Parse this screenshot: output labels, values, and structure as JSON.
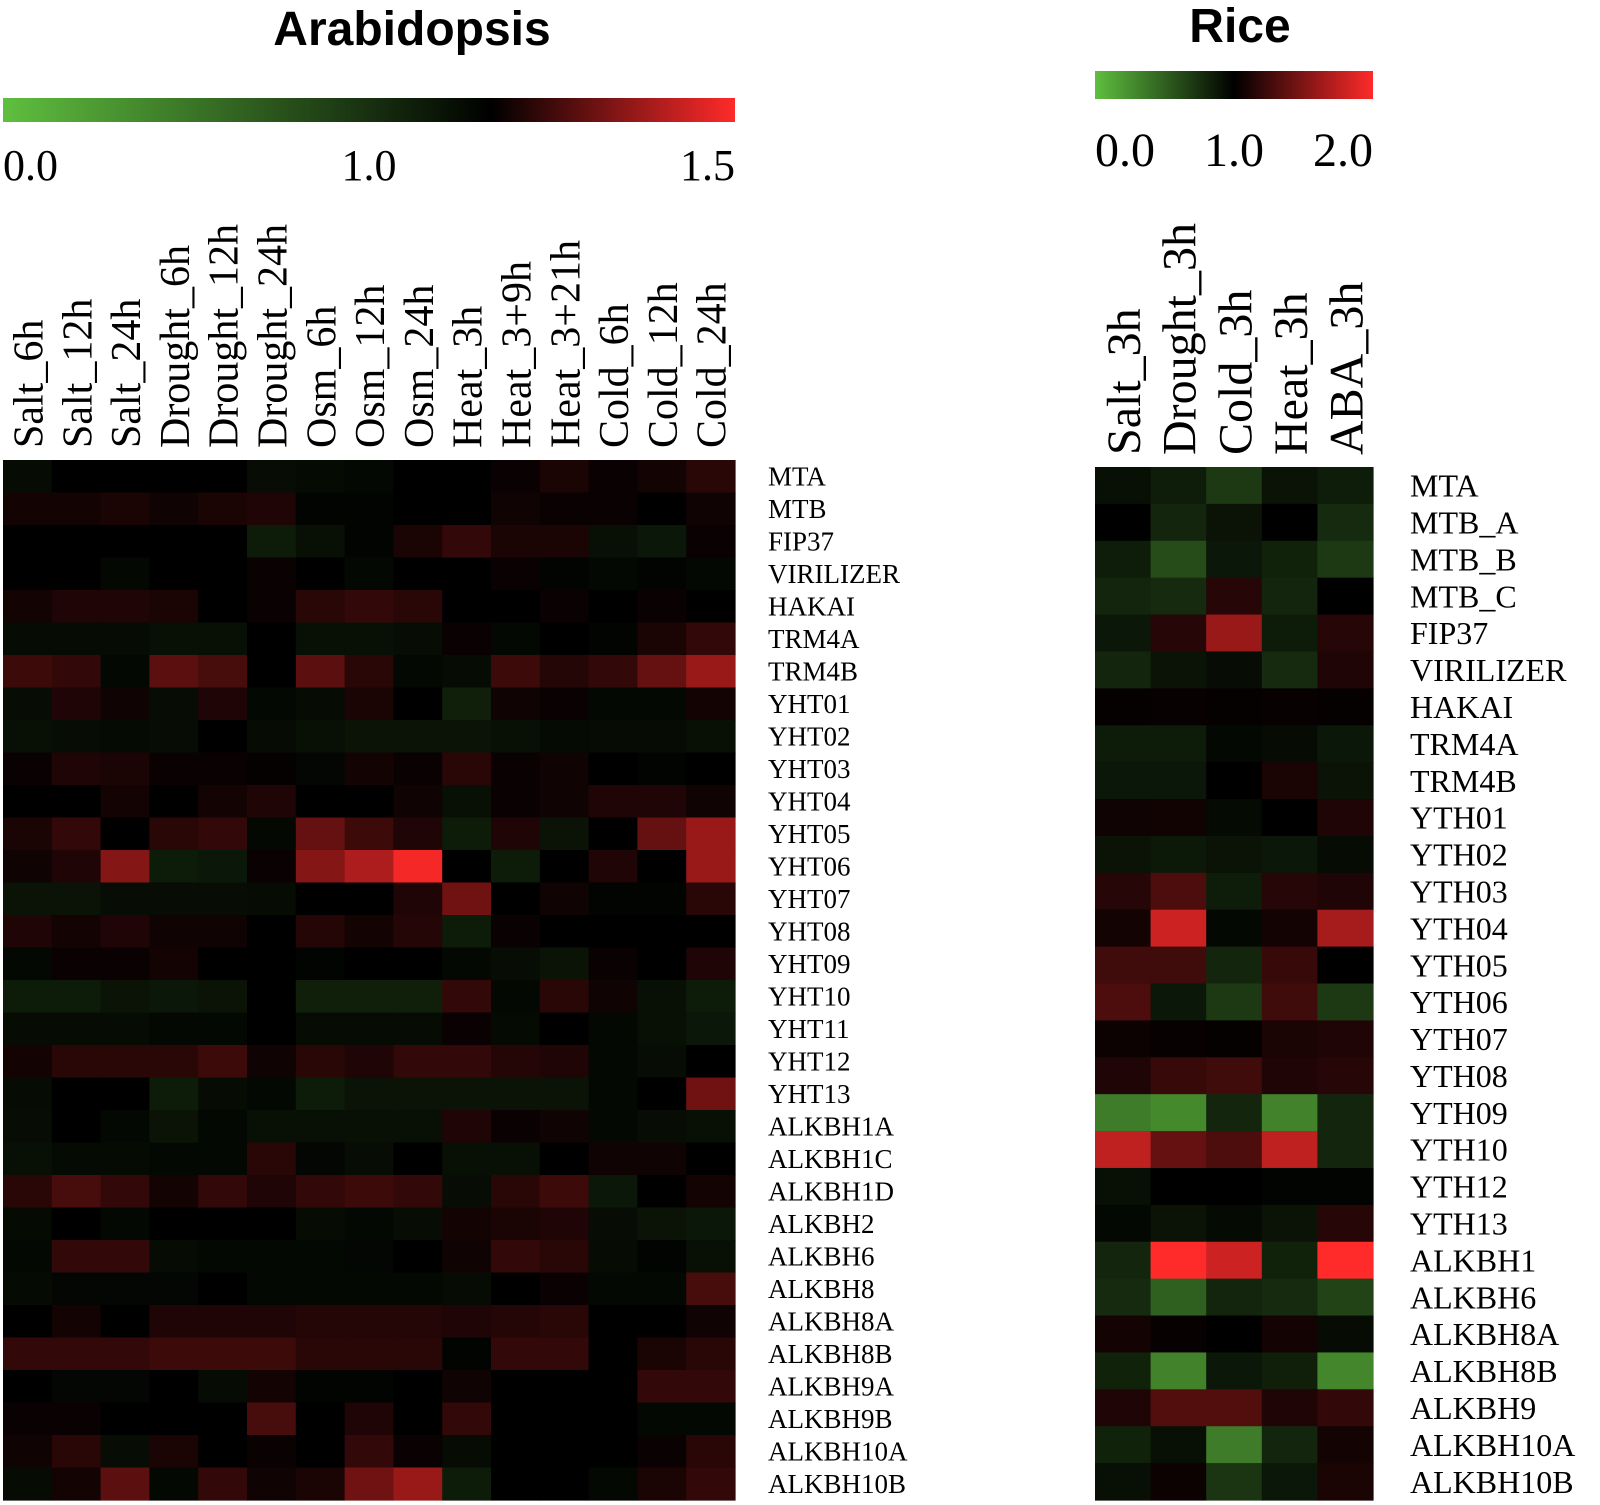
{
  "chart_data": [
    {
      "type": "heatmap",
      "title": "Arabidopsis",
      "colorscale": {
        "min": 0.0,
        "mid": 1.0,
        "max": 1.5,
        "tick_labels": [
          "0.0",
          "1.0",
          "1.5"
        ],
        "low_color": "#5fbf3f",
        "mid_color": "#000000",
        "high_color": "#ff2a2a"
      },
      "columns": [
        "Salt_6h",
        "Salt_12h",
        "Salt_24h",
        "Drought_6h",
        "Drought_12h",
        "Drought_24h",
        "Osm_6h",
        "Osm_12h",
        "Osm_24h",
        "Heat_3h",
        "Heat_3+9h",
        "Heat_3+21h",
        "Cold_6h",
        "Cold_12h",
        "Cold_24h"
      ],
      "rows": [
        "MTA",
        "MTB",
        "FIP37",
        "VIRILIZER",
        "HAKAI",
        "TRM4A",
        "TRM4B",
        "YHT01",
        "YHT02",
        "YHT03",
        "YHT04",
        "YHT05",
        "YHT06",
        "YHT07",
        "YHT08",
        "YHT09",
        "YHT10",
        "YHT11",
        "YHT12",
        "YHT13",
        "ALKBH1A",
        "ALKBH1C",
        "ALKBH1D",
        "ALKBH2",
        "ALKBH6",
        "ALKBH8",
        "ALKBH8A",
        "ALKBH8B",
        "ALKBH9A",
        "ALKBH9B",
        "ALKBH10A",
        "ALKBH10B"
      ],
      "values": [
        [
          0.94,
          1.0,
          1.0,
          1.0,
          1.0,
          0.93,
          0.95,
          0.96,
          1.0,
          1.0,
          1.02,
          1.05,
          1.02,
          1.04,
          1.08
        ],
        [
          1.04,
          1.04,
          1.05,
          1.03,
          1.05,
          1.06,
          0.98,
          0.98,
          1.0,
          1.0,
          1.03,
          1.02,
          1.02,
          1.0,
          1.03
        ],
        [
          1.0,
          1.0,
          1.0,
          1.0,
          1.0,
          0.86,
          0.92,
          0.98,
          1.05,
          1.1,
          1.05,
          1.05,
          0.92,
          0.88,
          1.02
        ],
        [
          1.0,
          1.0,
          0.96,
          1.0,
          1.0,
          1.02,
          1.0,
          0.96,
          1.0,
          1.0,
          1.02,
          0.98,
          0.96,
          0.98,
          0.96
        ],
        [
          1.04,
          1.06,
          1.06,
          1.05,
          1.0,
          1.02,
          1.08,
          1.1,
          1.08,
          1.0,
          1.0,
          1.02,
          1.0,
          1.02,
          1.0
        ],
        [
          0.94,
          0.94,
          0.94,
          0.92,
          0.92,
          1.0,
          0.92,
          0.92,
          0.93,
          1.02,
          0.96,
          1.0,
          0.98,
          1.05,
          1.1
        ],
        [
          1.12,
          1.1,
          0.96,
          1.18,
          1.14,
          1.0,
          1.18,
          1.08,
          0.96,
          0.94,
          1.12,
          1.07,
          1.1,
          1.2,
          1.3
        ],
        [
          0.93,
          1.06,
          1.03,
          0.93,
          1.06,
          0.96,
          0.94,
          1.05,
          1.0,
          0.84,
          1.03,
          1.02,
          0.96,
          0.96,
          1.04
        ],
        [
          0.92,
          0.93,
          0.95,
          0.93,
          1.0,
          0.94,
          0.92,
          0.9,
          0.9,
          0.9,
          0.92,
          0.95,
          0.94,
          0.94,
          0.92
        ],
        [
          1.02,
          1.06,
          1.05,
          1.02,
          1.02,
          1.01,
          0.97,
          1.04,
          1.02,
          1.08,
          1.02,
          1.03,
          1.0,
          0.98,
          1.0
        ],
        [
          1.0,
          1.0,
          1.04,
          1.0,
          1.04,
          1.06,
          1.0,
          1.0,
          1.03,
          0.92,
          1.02,
          1.03,
          1.06,
          1.06,
          1.03
        ],
        [
          1.05,
          1.1,
          1.0,
          1.08,
          1.1,
          0.96,
          1.2,
          1.12,
          1.06,
          0.86,
          1.06,
          0.9,
          1.0,
          1.2,
          1.3
        ],
        [
          1.03,
          1.06,
          1.26,
          0.86,
          0.88,
          1.02,
          1.26,
          1.34,
          1.48,
          1.0,
          0.86,
          1.0,
          1.06,
          1.0,
          1.3
        ],
        [
          0.9,
          0.9,
          0.93,
          0.93,
          0.93,
          0.94,
          1.0,
          1.0,
          1.06,
          1.22,
          1.0,
          1.03,
          0.98,
          0.98,
          1.08
        ],
        [
          1.06,
          1.04,
          1.06,
          1.03,
          1.03,
          1.0,
          1.07,
          1.04,
          1.07,
          0.86,
          1.02,
          1.0,
          1.0,
          1.0,
          1.0
        ],
        [
          0.96,
          1.02,
          1.02,
          1.04,
          1.0,
          1.0,
          0.98,
          1.0,
          1.0,
          0.96,
          0.93,
          0.9,
          1.02,
          1.0,
          1.06
        ],
        [
          0.86,
          0.86,
          0.9,
          0.88,
          0.9,
          1.0,
          0.84,
          0.84,
          0.84,
          1.1,
          0.96,
          1.08,
          1.03,
          0.92,
          0.86
        ],
        [
          0.94,
          0.94,
          0.94,
          0.96,
          0.96,
          1.0,
          0.94,
          0.94,
          0.94,
          1.02,
          0.95,
          1.0,
          0.96,
          0.92,
          0.88
        ],
        [
          1.04,
          1.08,
          1.08,
          1.08,
          1.12,
          1.03,
          1.08,
          1.06,
          1.1,
          1.1,
          1.07,
          1.06,
          0.96,
          0.93,
          1.0
        ],
        [
          0.94,
          1.0,
          1.0,
          0.86,
          0.94,
          0.96,
          0.86,
          0.9,
          0.9,
          0.9,
          0.9,
          0.9,
          0.96,
          1.0,
          1.22
        ],
        [
          0.93,
          1.0,
          0.96,
          0.9,
          0.96,
          0.92,
          0.92,
          0.92,
          0.92,
          1.06,
          1.02,
          1.03,
          0.96,
          0.93,
          0.92
        ],
        [
          0.92,
          0.95,
          0.95,
          0.96,
          0.96,
          1.08,
          0.97,
          0.93,
          1.0,
          0.92,
          0.92,
          1.0,
          1.03,
          1.03,
          1.0
        ],
        [
          1.08,
          1.14,
          1.1,
          1.04,
          1.1,
          1.06,
          1.1,
          1.12,
          1.1,
          0.93,
          1.08,
          1.12,
          0.88,
          1.0,
          1.04
        ],
        [
          0.95,
          1.0,
          0.96,
          1.0,
          1.0,
          1.0,
          0.94,
          0.96,
          0.93,
          1.04,
          1.05,
          1.06,
          0.93,
          0.9,
          0.88
        ],
        [
          0.96,
          1.1,
          1.1,
          0.94,
          0.96,
          0.96,
          0.96,
          0.97,
          1.0,
          1.03,
          1.1,
          1.08,
          0.94,
          0.98,
          0.92
        ],
        [
          0.95,
          0.97,
          0.97,
          0.97,
          1.0,
          0.96,
          0.96,
          0.96,
          0.96,
          0.94,
          1.0,
          1.02,
          0.96,
          0.96,
          1.14
        ],
        [
          1.0,
          1.04,
          1.0,
          1.06,
          1.06,
          1.06,
          1.07,
          1.07,
          1.07,
          1.06,
          1.07,
          1.08,
          1.0,
          1.0,
          1.03
        ],
        [
          1.1,
          1.1,
          1.1,
          1.12,
          1.12,
          1.12,
          1.08,
          1.08,
          1.08,
          0.98,
          1.1,
          1.1,
          1.0,
          1.05,
          1.08
        ],
        [
          1.0,
          0.97,
          0.97,
          1.0,
          0.94,
          1.04,
          0.98,
          0.98,
          1.0,
          1.03,
          1.0,
          1.0,
          1.0,
          1.1,
          1.1
        ],
        [
          1.02,
          1.02,
          1.0,
          1.0,
          1.0,
          1.14,
          1.0,
          1.06,
          1.0,
          1.1,
          1.0,
          1.0,
          1.0,
          0.96,
          0.96
        ],
        [
          1.03,
          1.08,
          0.93,
          1.05,
          1.0,
          1.02,
          1.0,
          1.1,
          1.02,
          0.94,
          1.0,
          1.0,
          1.0,
          1.02,
          1.08
        ],
        [
          0.94,
          1.04,
          1.18,
          0.96,
          1.1,
          1.03,
          1.05,
          1.22,
          1.3,
          0.86,
          1.0,
          1.0,
          0.96,
          1.05,
          1.1
        ]
      ]
    },
    {
      "type": "heatmap",
      "title": "Rice",
      "colorscale": {
        "min": 0.0,
        "mid": 1.0,
        "max": 2.0,
        "tick_labels": [
          "0.0",
          "1.0",
          "2.0"
        ],
        "low_color": "#5fbf3f",
        "mid_color": "#000000",
        "high_color": "#ff2a2a"
      },
      "columns": [
        "Salt_3h",
        "Drought_3h",
        "Cold_3h",
        "Heat_3h",
        "ABA_3h"
      ],
      "rows": [
        "MTA",
        "MTB_A",
        "MTB_B",
        "MTB_C",
        "FIP37",
        "VIRILIZER",
        "HAKAI",
        "TRM4A",
        "TRM4B",
        "YTH01",
        "YTH02",
        "YTH03",
        "YTH04",
        "YTH05",
        "YTH06",
        "YTH07",
        "YTH08",
        "YTH09",
        "YTH10",
        "YTH12",
        "YTH13",
        "ALKBH1",
        "ALKBH6",
        "ALKBH8A",
        "ALKBH8B",
        "ALKBH9",
        "ALKBH10A",
        "ALKBH10B"
      ],
      "values": [
        [
          0.92,
          0.85,
          0.7,
          0.9,
          0.85
        ],
        [
          1.0,
          0.8,
          0.9,
          1.0,
          0.78
        ],
        [
          0.85,
          0.6,
          0.88,
          0.82,
          0.7
        ],
        [
          0.8,
          0.78,
          1.15,
          0.8,
          1.0
        ],
        [
          0.88,
          1.15,
          1.6,
          0.86,
          1.15
        ],
        [
          0.8,
          0.9,
          0.93,
          0.78,
          1.12
        ],
        [
          1.02,
          1.03,
          1.02,
          1.03,
          1.02
        ],
        [
          0.86,
          0.86,
          0.96,
          0.94,
          0.88
        ],
        [
          0.88,
          0.88,
          1.0,
          1.1,
          0.9
        ],
        [
          1.06,
          1.07,
          0.95,
          1.0,
          1.12
        ],
        [
          0.9,
          0.87,
          0.9,
          0.88,
          0.94
        ],
        [
          1.15,
          1.3,
          0.85,
          1.15,
          1.12
        ],
        [
          1.08,
          1.8,
          0.96,
          1.08,
          1.65
        ],
        [
          1.25,
          1.25,
          0.8,
          1.22,
          1.0
        ],
        [
          1.3,
          0.88,
          0.7,
          1.25,
          0.7
        ],
        [
          1.05,
          1.03,
          1.02,
          1.1,
          1.12
        ],
        [
          1.12,
          1.22,
          1.25,
          1.12,
          1.15
        ],
        [
          0.35,
          0.28,
          0.8,
          0.32,
          0.8
        ],
        [
          1.75,
          1.4,
          1.3,
          1.75,
          0.8
        ],
        [
          0.92,
          1.0,
          1.0,
          0.98,
          0.98
        ],
        [
          0.96,
          0.9,
          0.95,
          0.9,
          1.15
        ],
        [
          0.8,
          2.0,
          1.8,
          0.82,
          2.2
        ],
        [
          0.78,
          0.5,
          0.8,
          0.78,
          0.65
        ],
        [
          1.08,
          1.03,
          1.0,
          1.08,
          0.94
        ],
        [
          0.82,
          0.32,
          0.88,
          0.84,
          0.3
        ],
        [
          1.12,
          1.32,
          1.32,
          1.12,
          1.2
        ],
        [
          0.82,
          0.92,
          0.35,
          0.8,
          1.08
        ],
        [
          0.92,
          1.05,
          0.72,
          0.88,
          1.1
        ]
      ]
    }
  ]
}
